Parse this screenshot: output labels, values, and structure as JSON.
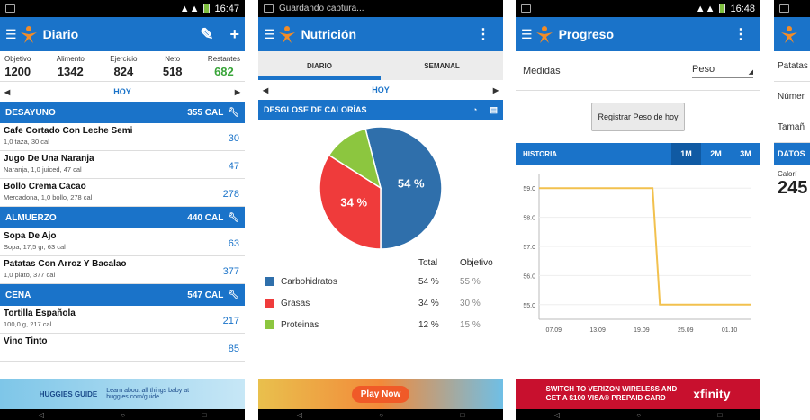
{
  "screens": {
    "diario": {
      "status_time": "16:47",
      "title": "Diario",
      "summary": [
        {
          "label": "Objetivo",
          "value": "1200"
        },
        {
          "label": "Alimento",
          "value": "1342"
        },
        {
          "label": "Ejercicio",
          "value": "824"
        },
        {
          "label": "Neto",
          "value": "518"
        },
        {
          "label": "Restantes",
          "value": "682"
        }
      ],
      "day": "HOY",
      "meals": [
        {
          "name": "DESAYUNO",
          "cal": "355 CAL",
          "foods": [
            {
              "name": "Cafe Cortado Con Leche Semi",
              "desc": "1,0 taza, 30 cal",
              "kcal": "30"
            },
            {
              "name": "Jugo De Una Naranja",
              "desc": "Naranja, 1,0 juiced, 47 cal",
              "kcal": "47"
            },
            {
              "name": "Bollo Crema Cacao",
              "desc": "Mercadona, 1,0 bollo, 278 cal",
              "kcal": "278"
            }
          ]
        },
        {
          "name": "ALMUERZO",
          "cal": "440 CAL",
          "foods": [
            {
              "name": "Sopa De Ajo",
              "desc": "Sopa, 17,5 gr, 63 cal",
              "kcal": "63"
            },
            {
              "name": "Patatas Con Arroz Y Bacalao",
              "desc": "1,0 plato, 377 cal",
              "kcal": "377"
            }
          ]
        },
        {
          "name": "CENA",
          "cal": "547 CAL",
          "foods": [
            {
              "name": "Tortilla Española",
              "desc": "100,0 g, 217 cal",
              "kcal": "217"
            },
            {
              "name": "Vino Tinto",
              "desc": "",
              "kcal": "85"
            }
          ]
        }
      ],
      "ad": {
        "brand": "HUGGIES GUIDE",
        "text": "Learn about all things baby at huggies.com/guide"
      }
    },
    "nutricion": {
      "status_text": "Guardando captura...",
      "title": "Nutrición",
      "tabs": [
        "DIARIO",
        "SEMANAL"
      ],
      "day": "HOY",
      "section": "DESGLOSE DE CALORÍAS",
      "col_total": "Total",
      "col_objetivo": "Objetivo",
      "pie": [
        {
          "name": "Carbohidratos",
          "total": "54 %",
          "objetivo": "55 %",
          "value": 54,
          "color": "#2f6fab"
        },
        {
          "name": "Grasas",
          "total": "34 %",
          "objetivo": "30 %",
          "value": 34,
          "color": "#ef3b3b"
        },
        {
          "name": "Proteinas",
          "total": "12 %",
          "objetivo": "15 %",
          "value": 12,
          "color": "#8cc63f"
        }
      ],
      "ad": {
        "button": "Play Now"
      }
    },
    "progreso": {
      "status_time": "16:48",
      "title": "Progreso",
      "medidas_label": "Medidas",
      "medidas_value": "Peso",
      "register_button": "Registrar Peso de hoy",
      "history_label": "HISTORIA",
      "ranges": [
        "1M",
        "2M",
        "3M"
      ],
      "ad": {
        "line1": "SWITCH TO VERIZON WIRELESS AND",
        "line2": "GET A $100 VISA® PREPAID CARD",
        "brand": "xfinity"
      }
    },
    "partial": {
      "rows": [
        "Patatas",
        "Númer",
        "Tamañ"
      ],
      "header": "DATOS",
      "cal_label": "Calorí",
      "cal_value": "245"
    }
  },
  "chart_data": {
    "type": "line",
    "x_ticks": [
      "07.09",
      "13.09",
      "19.09",
      "25.09",
      "01.10"
    ],
    "y_ticks": [
      "59.0",
      "58.0",
      "57.0",
      "56.0",
      "55.0"
    ],
    "ylim": [
      54.5,
      59.5
    ],
    "series": [
      {
        "x": [
          0,
          15.5,
          16.5,
          29
        ],
        "y": [
          59.0,
          59.0,
          55.0,
          55.0
        ]
      }
    ]
  },
  "colors": {
    "accent": "#1a73c9",
    "green": "#3aa53a"
  }
}
